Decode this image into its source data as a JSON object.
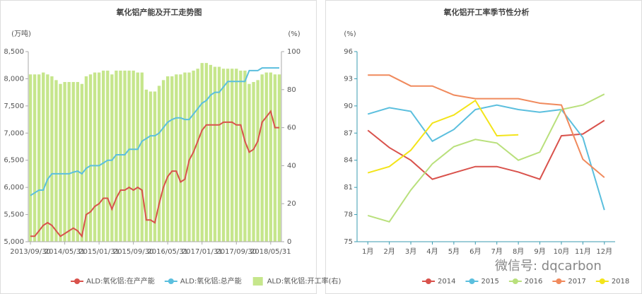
{
  "chart_data": [
    {
      "type": "combo",
      "title": "氧化铝产能及开工走势图",
      "y_label": "(万吨)",
      "y2_label": "(%)",
      "categories": [
        "2013/09/30",
        null,
        null,
        null,
        null,
        null,
        null,
        null,
        "2014/05/31",
        null,
        null,
        null,
        null,
        null,
        null,
        null,
        "2015/01/31",
        null,
        null,
        null,
        null,
        null,
        null,
        null,
        "2015/09/30",
        null,
        null,
        null,
        null,
        null,
        null,
        null,
        "2016/05/31",
        null,
        null,
        null,
        null,
        null,
        null,
        null,
        "2017/01/31",
        null,
        null,
        null,
        null,
        null,
        null,
        null,
        "2017/09/30",
        null,
        null,
        null,
        null,
        null,
        null,
        null,
        "2018/05/31",
        null,
        null
      ],
      "ylim": [
        5000,
        8500
      ],
      "yticks": [
        {
          "value": 5000,
          "label": "5,000"
        },
        {
          "value": 5500,
          "label": "5,500"
        },
        {
          "value": 6000,
          "label": "6,000"
        },
        {
          "value": 6500,
          "label": "6,500"
        },
        {
          "value": 7000,
          "label": "7,000"
        },
        {
          "value": 7500,
          "label": "7,500"
        },
        {
          "value": 8000,
          "label": "8,000"
        },
        {
          "value": 8500,
          "label": "8,500"
        }
      ],
      "y2lim": [
        0,
        100
      ],
      "y2ticks": [
        0,
        20,
        40,
        60,
        80,
        100
      ],
      "grid": false,
      "series": [
        {
          "name": "ALD:氧化铝:在产产能",
          "kind": "line",
          "color": "#d9524c",
          "values": [
            5100,
            5100,
            5200,
            5300,
            5350,
            5300,
            5200,
            5100,
            5150,
            5200,
            5250,
            5200,
            5100,
            5500,
            5550,
            5650,
            5700,
            5800,
            5800,
            5600,
            5800,
            5950,
            5950,
            6000,
            5950,
            6000,
            5950,
            5400,
            5400,
            5350,
            5700,
            6000,
            6200,
            6300,
            6300,
            6100,
            6150,
            6500,
            6650,
            6850,
            7050,
            7150,
            7150,
            7150,
            7150,
            7200,
            7200,
            7200,
            7150,
            7150,
            6850,
            6650,
            6700,
            6850,
            7200,
            7300,
            7400,
            7100,
            7100
          ]
        },
        {
          "name": "ALD:氧化铝:总产能",
          "kind": "line",
          "color": "#5bbfde",
          "values": [
            5850,
            5900,
            5950,
            5950,
            6150,
            6250,
            6250,
            6250,
            6250,
            6250,
            6280,
            6300,
            6250,
            6350,
            6400,
            6400,
            6400,
            6450,
            6500,
            6500,
            6600,
            6600,
            6600,
            6700,
            6700,
            6700,
            6850,
            6900,
            6950,
            6950,
            7000,
            7100,
            7200,
            7250,
            7280,
            7280,
            7250,
            7250,
            7350,
            7450,
            7550,
            7600,
            7700,
            7750,
            7750,
            7850,
            7950,
            7950,
            7950,
            7950,
            7950,
            8150,
            8150,
            8150,
            8200,
            8200,
            8200,
            8200,
            8200
          ]
        },
        {
          "name": "ALD:氧化铝:开工率(右)",
          "kind": "bar",
          "axis": "y2",
          "color": "#c6e68c",
          "values": [
            88,
            88,
            88,
            89,
            88,
            87,
            85,
            83,
            84,
            84,
            84,
            84,
            83,
            87,
            88,
            89,
            89,
            90,
            90,
            88,
            90,
            90,
            90,
            90,
            90,
            89,
            89,
            80,
            79,
            79,
            82,
            85,
            87,
            87,
            88,
            88,
            89,
            89,
            90,
            91,
            94,
            94,
            93,
            92,
            92,
            91,
            91,
            91,
            91,
            90,
            90,
            83,
            84,
            85,
            88,
            89,
            89,
            88,
            88
          ]
        }
      ]
    },
    {
      "type": "line",
      "title": "氧化铝开工率季节性分析",
      "y_label": "(%)",
      "categories": [
        "1月",
        "2月",
        "3月",
        "4月",
        "5月",
        "6月",
        "7月",
        "8月",
        "9月",
        "10月",
        "11月",
        "12月"
      ],
      "ylim": [
        75,
        96
      ],
      "yticks": [
        75,
        78,
        81,
        84,
        87,
        90,
        93,
        96
      ],
      "grid": false,
      "series": [
        {
          "name": "2014",
          "color": "#d9524c",
          "values": [
            87.3,
            85.4,
            84,
            81.9,
            82.6,
            83.3,
            83.3,
            82.7,
            81.9,
            86.7,
            86.9,
            88.4
          ]
        },
        {
          "name": "2015",
          "color": "#5bbfde",
          "values": [
            89.1,
            89.8,
            89.4,
            86.1,
            87.4,
            89.6,
            90.1,
            89.6,
            89.3,
            89.6,
            86.5,
            78.5
          ]
        },
        {
          "name": "2016",
          "color": "#b9e07c",
          "values": [
            77.9,
            77.2,
            80.7,
            83.6,
            85.5,
            86.3,
            85.9,
            84,
            84.9,
            89.6,
            90.1,
            91.3
          ]
        },
        {
          "name": "2017",
          "color": "#f08a5d",
          "values": [
            93.4,
            93.4,
            92.2,
            92.2,
            91.2,
            90.8,
            90.8,
            90.8,
            90.3,
            90.1,
            84.1,
            82.1
          ]
        },
        {
          "name": "2018",
          "color": "#f3e41a",
          "values": [
            82.6,
            83.3,
            85.1,
            88.1,
            89,
            90.6,
            86.7,
            86.8,
            null,
            null,
            null,
            null
          ]
        }
      ]
    }
  ],
  "watermark": "微信号: dqcarbon"
}
